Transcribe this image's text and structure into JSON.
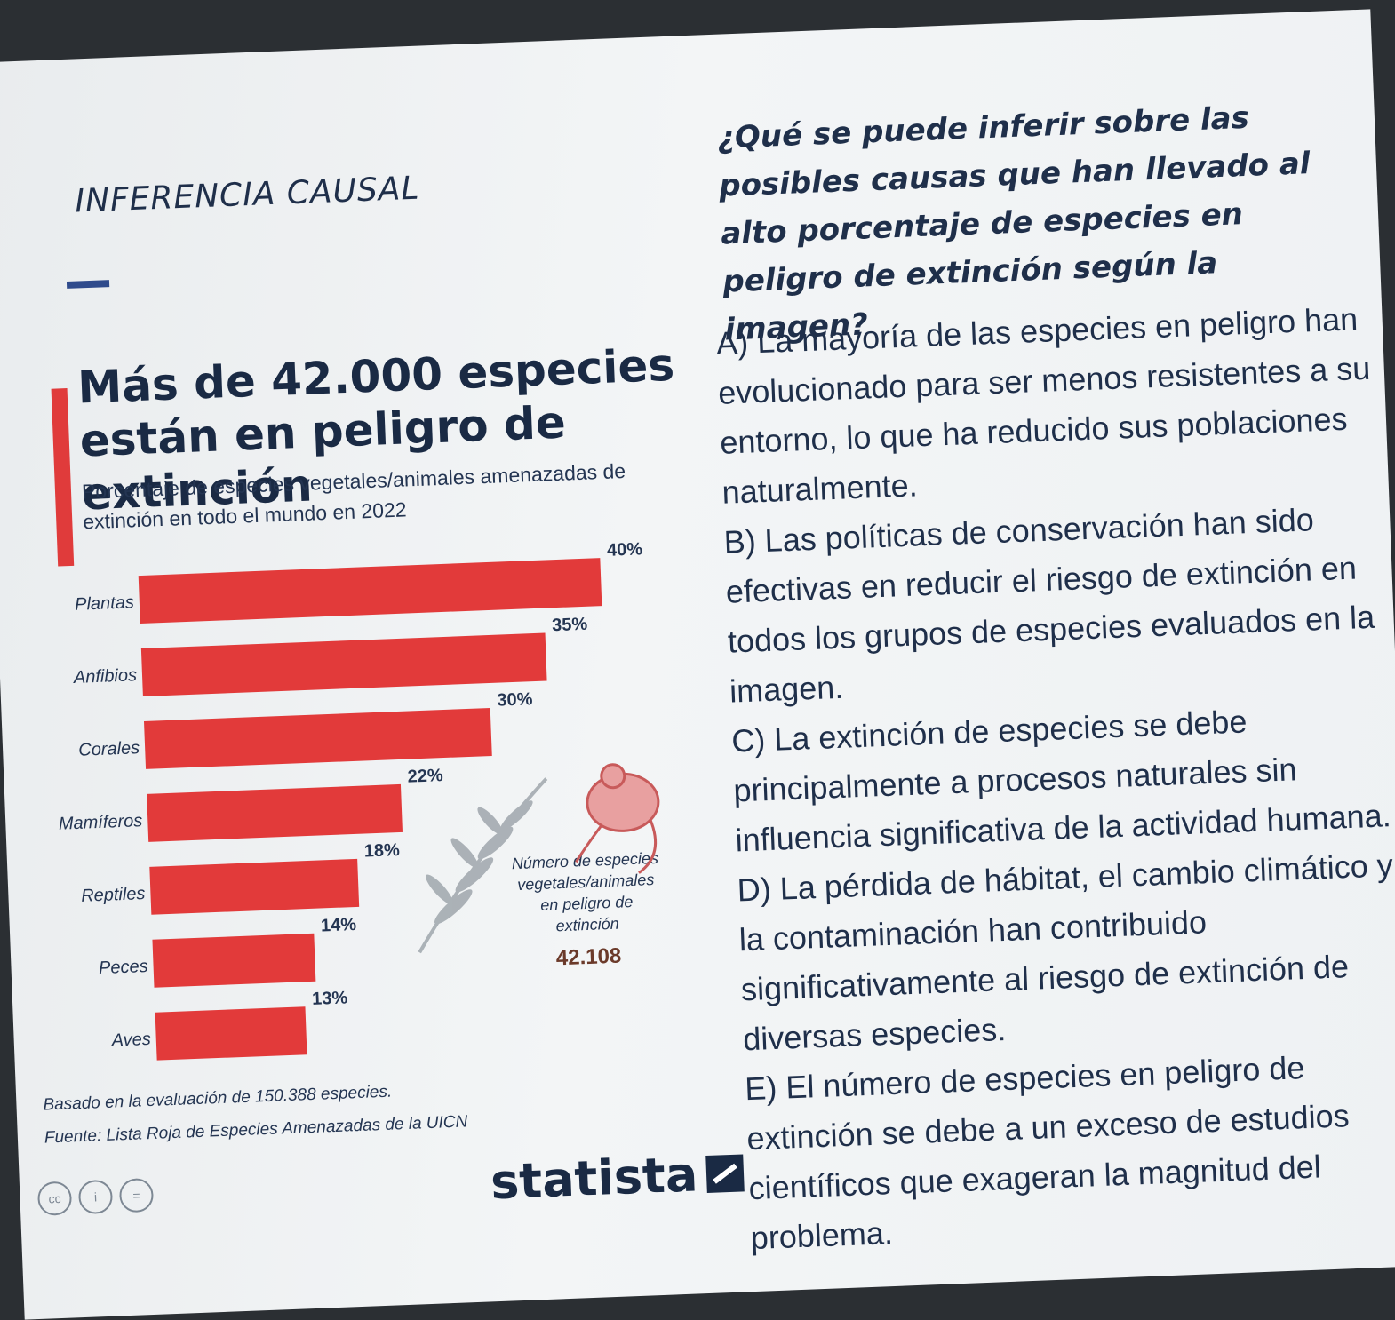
{
  "slide": {
    "title": "INFERENCIA CAUSAL",
    "question": "¿Qué se puede inferir sobre las posibles causas que han llevado al alto porcentaje de especies en peligro de extinción según la imagen?",
    "options": [
      "A) La mayoría de las especies en peligro han evolucionado para ser menos resistentes a su entorno, lo que ha reducido sus poblaciones naturalmente.",
      "B) Las políticas de conservación han sido efectivas en reducir el riesgo de extinción en todos los grupos de especies evaluados en la imagen.",
      "C) La extinción de especies se debe principalmente a procesos naturales sin influencia significativa de la actividad humana.",
      "D) La pérdida de hábitat, el cambio climático y la contaminación han contribuido significativamente al riesgo de extinción de diversas especies.",
      "E) El número de especies en peligro de extinción se debe a un exceso de estudios científicos que exageran la magnitud del problema."
    ]
  },
  "chart_data": {
    "type": "bar",
    "title": "Más de 42.000 especies están en peligro de extinción",
    "subtitle": "Porcentaje de especies vegetales/animales amenazadas de extinción en todo el mundo en 2022",
    "categories": [
      "Plantas",
      "Anfibios",
      "Corales",
      "Mamíferos",
      "Reptiles",
      "Peces",
      "Aves"
    ],
    "values": [
      40,
      35,
      30,
      22,
      18,
      14,
      13
    ],
    "value_labels": [
      "40%",
      "35%",
      "30%",
      "22%",
      "18%",
      "14%",
      "13%"
    ],
    "xlim": [
      0,
      40
    ],
    "grid": false,
    "bar_color": "#e23a3a",
    "annotation": {
      "label": "Número de especies vegetales/animales en peligro de extinción",
      "value": "42.108"
    },
    "note": "Basado en la evaluación de 150.388 especies.",
    "source": "Fuente: Lista Roja de Especies Amenazadas de la UICN",
    "brand": "statista"
  },
  "cc_icons": [
    "cc",
    "i",
    "="
  ]
}
